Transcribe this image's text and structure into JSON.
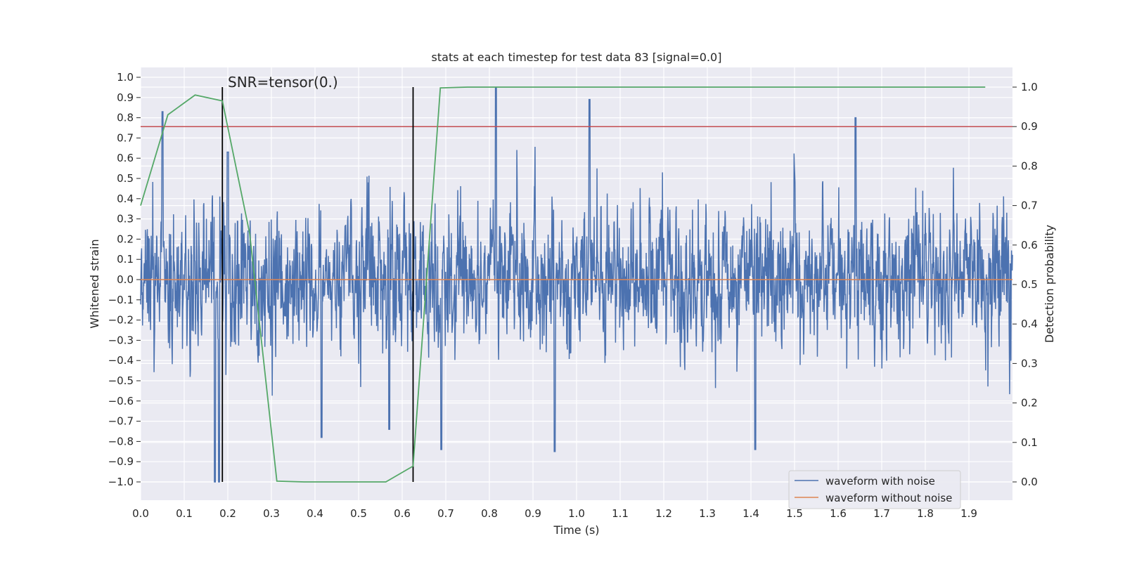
{
  "chart_data": {
    "type": "line",
    "title": "stats at each timestep for test data 83 [signal=0.0]",
    "xlabel": "Time (s)",
    "ylabel": "Whitened strain",
    "y2label": "Detection probability",
    "xlim": [
      0.0,
      2.0
    ],
    "ylim": [
      -1.0,
      1.0
    ],
    "y2lim": [
      0.0,
      1.0
    ],
    "grid": true,
    "x_ticks": [
      0.0,
      0.1,
      0.2,
      0.3,
      0.4,
      0.5,
      0.6,
      0.7,
      0.8,
      0.9,
      1.0,
      1.1,
      1.2,
      1.3,
      1.4,
      1.5,
      1.6,
      1.7,
      1.8,
      1.9
    ],
    "x_tick_labels": [
      "0.0",
      "0.1",
      "0.2",
      "0.3",
      "0.4",
      "0.5",
      "0.6",
      "0.7",
      "0.8",
      "0.9",
      "1.0",
      "1.1",
      "1.2",
      "1.3",
      "1.4",
      "1.5",
      "1.6",
      "1.7",
      "1.8",
      "1.9"
    ],
    "y_ticks": [
      1.0,
      0.9,
      0.8,
      0.7,
      0.6,
      0.5,
      0.4,
      0.3,
      0.2,
      0.1,
      0.0,
      -0.1,
      -0.2,
      -0.3,
      -0.4,
      -0.5,
      -0.6,
      -0.7,
      -0.8,
      -0.9,
      -1.0
    ],
    "y_tick_labels": [
      "1.0",
      "0.9",
      "0.8",
      "0.7",
      "0.6",
      "0.5",
      "0.4",
      "0.3",
      "0.2",
      "0.1",
      "0.0",
      "−0.1",
      "−0.2",
      "−0.3",
      "−0.4",
      "−0.5",
      "−0.6",
      "−0.7",
      "−0.8",
      "−0.9",
      "−1.0"
    ],
    "y2_ticks": [
      1.0,
      0.9,
      0.8,
      0.7,
      0.6,
      0.5,
      0.4,
      0.3,
      0.2,
      0.1,
      0.0
    ],
    "y2_tick_labels": [
      "1.0",
      "0.9",
      "0.8",
      "0.7",
      "0.6",
      "0.5",
      "0.4",
      "0.3",
      "0.2",
      "0.1",
      "0.0"
    ],
    "series": [
      {
        "name": "waveform with noise",
        "color": "#4c72b0",
        "axis": "left",
        "sample_rate_hz": 2048,
        "amplitude_std": 0.28,
        "values_note": "dense noise trace; generated from seed below",
        "seed": 83,
        "spikes": [
          [
            0.05,
            0.83
          ],
          [
            0.17,
            -1.0
          ],
          [
            0.18,
            -1.0
          ],
          [
            0.2,
            0.63
          ],
          [
            0.415,
            -0.78
          ],
          [
            0.57,
            -0.74
          ],
          [
            0.69,
            -0.84
          ],
          [
            0.815,
            0.95
          ],
          [
            1.03,
            0.89
          ],
          [
            1.41,
            -0.84
          ],
          [
            1.64,
            0.8
          ],
          [
            0.95,
            -0.85
          ]
        ]
      },
      {
        "name": "waveform without noise",
        "color": "#dd8452",
        "axis": "left",
        "x": [
          0.0,
          2.0
        ],
        "values": [
          0.0,
          0.0
        ]
      },
      {
        "name": "detection probability",
        "color": "#55a868",
        "axis": "right",
        "x": [
          0.0,
          0.0625,
          0.125,
          0.1875,
          0.25,
          0.3125,
          0.375,
          0.4375,
          0.5,
          0.5625,
          0.625,
          0.6875,
          0.75,
          0.8125,
          0.875,
          0.9375,
          1.0,
          1.0625,
          1.125,
          1.1875,
          1.25,
          1.3125,
          1.375,
          1.4375,
          1.5,
          1.5625,
          1.625,
          1.6875,
          1.75,
          1.8125,
          1.875,
          1.9375
        ],
        "values": [
          0.7,
          0.93,
          0.98,
          0.965,
          0.63,
          0.002,
          0.0,
          0.0,
          0.0,
          0.0,
          0.04,
          0.998,
          1.0,
          1.0,
          1.0,
          1.0,
          1.0,
          1.0,
          1.0,
          1.0,
          1.0,
          1.0,
          1.0,
          1.0,
          1.0,
          1.0,
          1.0,
          1.0,
          1.0,
          1.0,
          1.0,
          1.0
        ]
      }
    ],
    "threshold": {
      "axis": "right",
      "value": 0.9,
      "color": "#c44e52"
    },
    "vlines": [
      {
        "x": 0.1875,
        "color": "#000000"
      },
      {
        "x": 0.625,
        "color": "#000000"
      }
    ],
    "annotation": {
      "text": "SNR=tensor(0.)",
      "x": 0.2,
      "y2": 1.0
    },
    "legend": {
      "position": "lower-right",
      "entries": [
        {
          "label": "waveform with noise",
          "color": "#4c72b0"
        },
        {
          "label": "waveform without noise",
          "color": "#dd8452"
        }
      ]
    }
  }
}
